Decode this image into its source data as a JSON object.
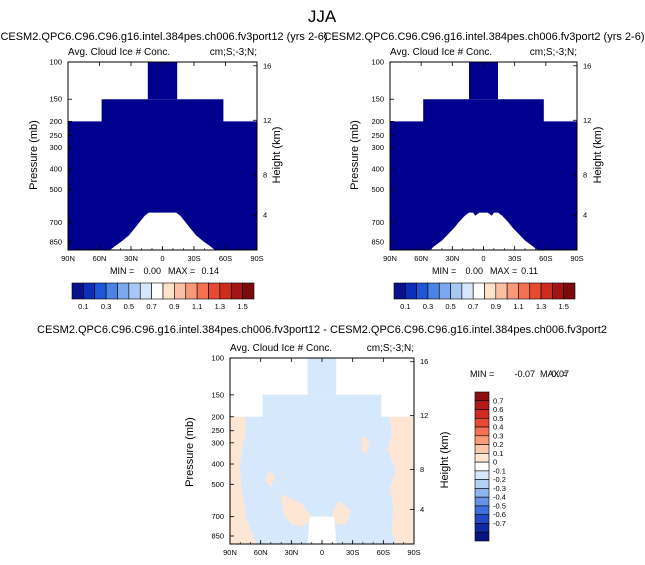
{
  "figure": {
    "title": "JJA",
    "diff_title": "CESM2.QPC6.C96.C96.g16.intel.384pes.ch006.fv3port12 - CESM2.QPC6.C96.C96.g16.intel.384pes.ch006.fv3port2"
  },
  "colors": {
    "fill_max": "#00008f",
    "zero": "#ffffff",
    "diff_pos": "#fde6d4",
    "diff_neg": "#d6e8fb"
  },
  "chart_data": [
    {
      "type": "heatmap",
      "title": "CESM2.QPC6.C96.C96.g16.intel.384pes.ch006.fv3port12 (yrs 2-6)",
      "subtitle_left": "Avg. Cloud Ice # Conc.",
      "subtitle_right": "cm;S;-3;N;",
      "xlabel": "",
      "ylabel": "Pressure (mb)",
      "ylabel_right": "Height (km)",
      "x_ticks": [
        "90N",
        "60N",
        "30N",
        "0",
        "30S",
        "60S",
        "90S"
      ],
      "y_ticks": [
        "100",
        "150",
        "200",
        "250",
        "300",
        "400",
        "500",
        "700",
        "850"
      ],
      "y_ticks_right": [
        "16",
        "12",
        "8",
        "4"
      ],
      "xlim": [
        90,
        -90
      ],
      "ylim": [
        100,
        925
      ],
      "min_label": "MIN =",
      "min_value": "0.00",
      "max_label": "MAX =",
      "max_value": "0.14",
      "colorbar": {
        "labels": [
          "0.1",
          "0.3",
          "0.5",
          "0.7",
          "0.9",
          "1.1",
          "1.3",
          "1.5"
        ],
        "colors": [
          "#08128c",
          "#0b2fb8",
          "#1e56d8",
          "#4a82e6",
          "#7aa8ef",
          "#a8c8f4",
          "#d6e7fb",
          "#ffffff",
          "#fde2cc",
          "#fbc0a3",
          "#f89a78",
          "#f47252",
          "#e74a32",
          "#cc2b1e",
          "#a31415",
          "#7b0a0a"
        ]
      },
      "top_profile": [
        [
          90,
          200
        ],
        [
          58,
          200
        ],
        [
          58,
          150
        ],
        [
          -58,
          150
        ],
        [
          -58,
          200
        ],
        [
          -90,
          200
        ]
      ],
      "top_profile_inner": [
        [
          14,
          150
        ],
        [
          14,
          100
        ],
        [
          -14,
          100
        ],
        [
          -14,
          150
        ]
      ],
      "bottom_profile": [
        [
          50,
          925
        ],
        [
          44,
          880
        ],
        [
          38,
          840
        ],
        [
          32,
          800
        ],
        [
          26,
          740
        ],
        [
          22,
          700
        ],
        [
          17,
          660
        ],
        [
          13,
          640
        ],
        [
          -13,
          640
        ],
        [
          -17,
          660
        ],
        [
          -22,
          700
        ],
        [
          -26,
          740
        ],
        [
          -32,
          800
        ],
        [
          -38,
          840
        ],
        [
          -44,
          880
        ],
        [
          -50,
          925
        ]
      ]
    },
    {
      "type": "heatmap",
      "title": "CESM2.QPC6.C96.C96.g16.intel.384pes.ch006.fv3port2 (yrs 2-6)",
      "subtitle_left": "Avg. Cloud Ice # Conc.",
      "subtitle_right": "cm;S;-3;N;",
      "xlabel": "",
      "ylabel": "Pressure (mb)",
      "ylabel_right": "Height (km)",
      "x_ticks": [
        "90N",
        "60N",
        "30N",
        "0",
        "30S",
        "60S",
        "90S"
      ],
      "y_ticks": [
        "100",
        "150",
        "200",
        "250",
        "300",
        "400",
        "500",
        "700",
        "850"
      ],
      "y_ticks_right": [
        "16",
        "12",
        "8",
        "4"
      ],
      "xlim": [
        90,
        -90
      ],
      "ylim": [
        100,
        925
      ],
      "min_label": "MIN =",
      "min_value": "0.00",
      "max_label": "MAX =",
      "max_value": "0.11",
      "colorbar": {
        "labels": [
          "0.1",
          "0.3",
          "0.5",
          "0.7",
          "0.9",
          "1.1",
          "1.3",
          "1.5"
        ],
        "colors": [
          "#08128c",
          "#0b2fb8",
          "#1e56d8",
          "#4a82e6",
          "#7aa8ef",
          "#a8c8f4",
          "#d6e7fb",
          "#ffffff",
          "#fde2cc",
          "#fbc0a3",
          "#f89a78",
          "#f47252",
          "#e74a32",
          "#cc2b1e",
          "#a31415",
          "#7b0a0a"
        ]
      },
      "top_profile": [
        [
          90,
          200
        ],
        [
          58,
          200
        ],
        [
          58,
          150
        ],
        [
          -58,
          150
        ],
        [
          -58,
          200
        ],
        [
          -90,
          200
        ]
      ],
      "top_profile_inner": [
        [
          14,
          150
        ],
        [
          14,
          100
        ],
        [
          -14,
          100
        ],
        [
          -14,
          150
        ]
      ],
      "bottom_profile": [
        [
          52,
          925
        ],
        [
          46,
          880
        ],
        [
          40,
          840
        ],
        [
          34,
          790
        ],
        [
          28,
          740
        ],
        [
          24,
          700
        ],
        [
          18,
          660
        ],
        [
          14,
          640
        ],
        [
          10,
          640
        ],
        [
          8,
          660
        ],
        [
          4,
          640
        ],
        [
          -4,
          640
        ],
        [
          -8,
          660
        ],
        [
          -10,
          640
        ],
        [
          -14,
          640
        ],
        [
          -18,
          660
        ],
        [
          -24,
          700
        ],
        [
          -28,
          740
        ],
        [
          -34,
          790
        ],
        [
          -40,
          840
        ],
        [
          -46,
          880
        ],
        [
          -52,
          925
        ]
      ]
    },
    {
      "type": "heatmap",
      "title": "",
      "subtitle_left": "Avg. Cloud Ice # Conc.",
      "subtitle_right": "cm;S;-3;N;",
      "xlabel": "",
      "ylabel": "Pressure (mb)",
      "ylabel_right": "Height (km)",
      "x_ticks": [
        "90N",
        "60N",
        "30N",
        "0",
        "30S",
        "60S",
        "90S"
      ],
      "y_ticks": [
        "100",
        "150",
        "200",
        "250",
        "300",
        "400",
        "500",
        "700",
        "850"
      ],
      "y_ticks_right": [
        "16",
        "12",
        "8",
        "4"
      ],
      "xlim": [
        90,
        -90
      ],
      "ylim": [
        100,
        925
      ],
      "min_label": "MIN =",
      "min_value": "-0.07",
      "max_label": "MAX =",
      "max_value": "0.07",
      "colorbar": {
        "labels": [
          "0.7",
          "0.6",
          "0.5",
          "0.4",
          "0.3",
          "0.2",
          "0.1",
          "0",
          "-0.1",
          "-0.2",
          "-0.3",
          "-0.4",
          "-0.5",
          "-0.6",
          "-0.7"
        ],
        "colors": [
          "#8a0f0f",
          "#b31a17",
          "#d02a20",
          "#e64a33",
          "#f37253",
          "#f89c7c",
          "#fbc6aa",
          "#fde6d4",
          "#ffffff",
          "#d6e8fb",
          "#b4d1f5",
          "#8db5ee",
          "#6594e6",
          "#3f70da",
          "#2049c3",
          "#0d2aa0",
          "#061580"
        ]
      },
      "top_profile": [
        [
          90,
          200
        ],
        [
          58,
          200
        ],
        [
          58,
          150
        ],
        [
          -58,
          150
        ],
        [
          -58,
          200
        ],
        [
          -90,
          200
        ]
      ],
      "top_profile_inner": [
        [
          14,
          150
        ],
        [
          14,
          100
        ],
        [
          -14,
          100
        ],
        [
          -14,
          150
        ]
      ],
      "bottom_profile": [
        [
          14,
          925
        ],
        [
          12,
          700
        ],
        [
          -12,
          700
        ],
        [
          -14,
          925
        ]
      ],
      "diff_pos_regions": [
        [
          [
            90,
            200
          ],
          [
            74,
            200
          ],
          [
            75,
            260
          ],
          [
            78,
            320
          ],
          [
            80,
            400
          ],
          [
            79,
            500
          ],
          [
            76,
            620
          ],
          [
            74,
            700
          ],
          [
            70,
            800
          ],
          [
            64,
            925
          ],
          [
            90,
            925
          ]
        ],
        [
          [
            -66,
            200
          ],
          [
            -90,
            200
          ],
          [
            -90,
            925
          ],
          [
            -72,
            925
          ],
          [
            -68,
            800
          ],
          [
            -70,
            640
          ],
          [
            -66,
            520
          ],
          [
            -72,
            430
          ],
          [
            -64,
            330
          ],
          [
            -68,
            260
          ]
        ],
        [
          [
            40,
            560
          ],
          [
            20,
            620
          ],
          [
            10,
            700
          ],
          [
            18,
            780
          ],
          [
            30,
            760
          ],
          [
            38,
            680
          ]
        ],
        [
          [
            -16,
            600
          ],
          [
            -28,
            660
          ],
          [
            -24,
            760
          ],
          [
            -14,
            760
          ],
          [
            -10,
            680
          ]
        ],
        [
          [
            -40,
            270
          ],
          [
            -46,
            290
          ],
          [
            -44,
            360
          ],
          [
            -38,
            330
          ]
        ],
        [
          [
            52,
            430
          ],
          [
            46,
            460
          ],
          [
            50,
            520
          ],
          [
            56,
            480
          ]
        ]
      ]
    }
  ]
}
